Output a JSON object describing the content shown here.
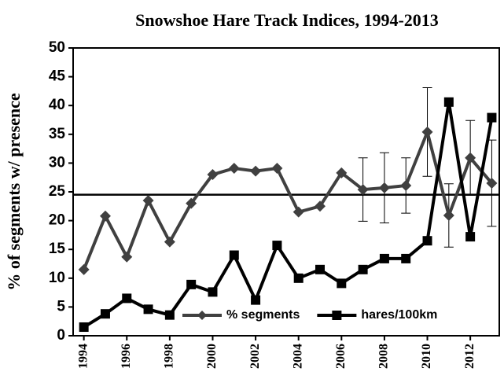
{
  "chart_data": {
    "type": "line",
    "title": "Snowshoe Hare Track Indices, 1994-2013",
    "y_label": "% of segments w/ presence",
    "x": [
      1994,
      1995,
      1996,
      1997,
      1998,
      1999,
      2000,
      2001,
      2002,
      2003,
      2004,
      2005,
      2006,
      2007,
      2008,
      2009,
      2010,
      2011,
      2012,
      2013
    ],
    "series": [
      {
        "name": "% segments",
        "color": "#404040",
        "marker": "diamond",
        "values": [
          11.5,
          20.8,
          13.7,
          23.5,
          16.3,
          23.0,
          28.0,
          29.1,
          28.6,
          29.1,
          21.5,
          22.5,
          28.3,
          25.4,
          25.7,
          26.1,
          35.4,
          20.9,
          30.9,
          26.5
        ],
        "errors": [
          null,
          null,
          null,
          null,
          null,
          null,
          null,
          null,
          null,
          null,
          null,
          null,
          null,
          5.5,
          6.1,
          4.8,
          7.7,
          5.5,
          6.5,
          7.5
        ]
      },
      {
        "name": "hares/100km",
        "color": "#000000",
        "marker": "square",
        "values": [
          1.5,
          3.8,
          6.5,
          4.6,
          3.6,
          8.9,
          7.6,
          14.0,
          6.2,
          15.7,
          10.0,
          11.5,
          9.1,
          11.5,
          13.4,
          13.4,
          16.5,
          40.6,
          17.2,
          37.9
        ]
      }
    ],
    "reference_line": 24.5,
    "xlim": [
      1993.5,
      2013.35
    ],
    "xticks": [
      1994,
      1996,
      1998,
      2000,
      2002,
      2004,
      2006,
      2008,
      2010,
      2012
    ],
    "ylim": [
      0,
      50
    ],
    "yticks": [
      0,
      5,
      10,
      15,
      20,
      25,
      30,
      35,
      40,
      45,
      50
    ],
    "legend": "bottom-right"
  }
}
